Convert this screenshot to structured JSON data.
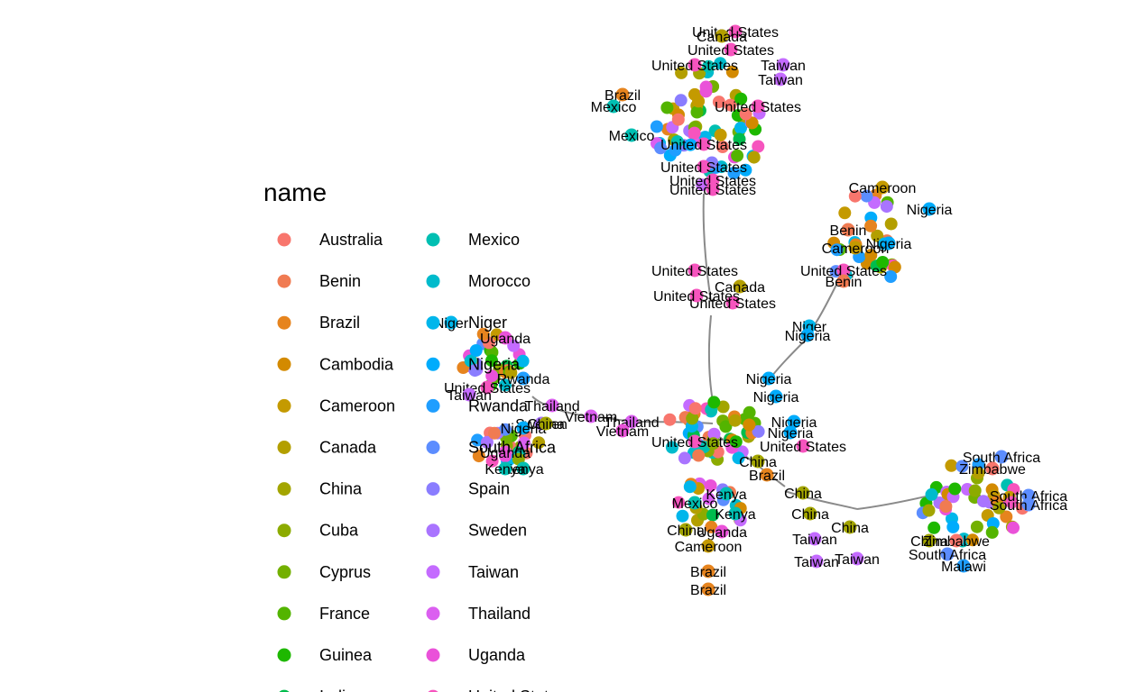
{
  "legend": {
    "title": "name",
    "items": [
      {
        "label": "Australia",
        "color": "#F8766D"
      },
      {
        "label": "Benin",
        "color": "#F07B52"
      },
      {
        "label": "Brazil",
        "color": "#E6841E"
      },
      {
        "label": "Cambodia",
        "color": "#D38A00"
      },
      {
        "label": "Cameroon",
        "color": "#C49A00"
      },
      {
        "label": "Canada",
        "color": "#B39F00"
      },
      {
        "label": "China",
        "color": "#A3A500"
      },
      {
        "label": "Cuba",
        "color": "#8CAB00"
      },
      {
        "label": "Cyprus",
        "color": "#73B000"
      },
      {
        "label": "France",
        "color": "#53B400"
      },
      {
        "label": "Guinea",
        "color": "#1EB800"
      },
      {
        "label": "India",
        "color": "#00BC4C"
      },
      {
        "label": "Mexico",
        "color": "#00BFB2"
      },
      {
        "label": "Morocco",
        "color": "#00BBCC"
      },
      {
        "label": "Niger",
        "color": "#00B6EB"
      },
      {
        "label": "Nigeria",
        "color": "#00ACFC"
      },
      {
        "label": "Rwanda",
        "color": "#1F9EFF"
      },
      {
        "label": "South Africa",
        "color": "#5C8DFF"
      },
      {
        "label": "Spain",
        "color": "#8A7DFF"
      },
      {
        "label": "Sweden",
        "color": "#A974FF"
      },
      {
        "label": "Taiwan",
        "color": "#C46BFF"
      },
      {
        "label": "Thailand",
        "color": "#DB5FF0"
      },
      {
        "label": "Uganda",
        "color": "#EA52D9"
      },
      {
        "label": "United States",
        "color": "#F654BE"
      }
    ]
  },
  "graph": {
    "nodes": [
      {
        "label": "United States",
        "color": "#F654BE"
      },
      {
        "label": "United States",
        "color": "#F654BE"
      },
      {
        "label": "Canada",
        "color": "#B39F00"
      },
      {
        "label": "United States",
        "color": "#F654BE"
      },
      {
        "label": "Taiwan",
        "color": "#C46BFF"
      },
      {
        "label": "Taiwan",
        "color": "#C46BFF"
      },
      {
        "label": "Brazil",
        "color": "#E6841E"
      },
      {
        "label": "Mexico",
        "color": "#00BFB2"
      },
      {
        "label": "United States",
        "color": "#F654BE"
      },
      {
        "label": "Mexico",
        "color": "#00BFB2"
      },
      {
        "label": "United States",
        "color": "#F654BE"
      },
      {
        "label": "United States",
        "color": "#F654BE"
      },
      {
        "label": "United States",
        "color": "#F654BE"
      },
      {
        "label": "United States",
        "color": "#F654BE"
      },
      {
        "label": "Canada",
        "color": "#B39F00"
      },
      {
        "label": "United States",
        "color": "#F654BE"
      },
      {
        "label": "Cameroon",
        "color": "#C49A00"
      },
      {
        "label": "Nigeria",
        "color": "#00ACFC"
      },
      {
        "label": "Benin",
        "color": "#F07B52"
      },
      {
        "label": "Cameroon",
        "color": "#C49A00"
      },
      {
        "label": "United States",
        "color": "#F654BE"
      },
      {
        "label": "Nigeria",
        "color": "#00ACFC"
      },
      {
        "label": "Benin",
        "color": "#F07B52"
      },
      {
        "label": "Niger",
        "color": "#00B6EB"
      },
      {
        "label": "Nigeria",
        "color": "#00ACFC"
      },
      {
        "label": "Niger",
        "color": "#00B6EB"
      },
      {
        "label": "Uganda",
        "color": "#EA52D9"
      },
      {
        "label": "Thailand",
        "color": "#DB5FF0"
      },
      {
        "label": "Vietnam",
        "color": "#DB5FF0"
      },
      {
        "label": "United States",
        "color": "#F654BE"
      },
      {
        "label": "Taiwan",
        "color": "#C46BFF"
      },
      {
        "label": "Rwanda",
        "color": "#1F9EFF"
      },
      {
        "label": "Thailand",
        "color": "#DB5FF0"
      },
      {
        "label": "Sweden",
        "color": "#A974FF"
      },
      {
        "label": "Vietnam",
        "color": "#EA52D9"
      },
      {
        "label": "Nigeria",
        "color": "#00ACFC"
      },
      {
        "label": "China",
        "color": "#A3A500"
      },
      {
        "label": "Uganda",
        "color": "#EA52D9"
      },
      {
        "label": "Kenya",
        "color": "#00BFB2"
      },
      {
        "label": "Kenya",
        "color": "#00BFB2"
      },
      {
        "label": "Nigeria",
        "color": "#00ACFC"
      },
      {
        "label": "Nigeria",
        "color": "#00ACFC"
      },
      {
        "label": "Nigeria",
        "color": "#00ACFC"
      },
      {
        "label": "Nigeria",
        "color": "#00ACFC"
      },
      {
        "label": "United States",
        "color": "#F654BE"
      },
      {
        "label": "United States",
        "color": "#F654BE"
      },
      {
        "label": "China",
        "color": "#A3A500"
      },
      {
        "label": "Brazil",
        "color": "#E6841E"
      },
      {
        "label": "Kenya",
        "color": "#00BFB2"
      },
      {
        "label": "Mexico",
        "color": "#00BFB2"
      },
      {
        "label": "Kenya",
        "color": "#00BFB2"
      },
      {
        "label": "China",
        "color": "#A3A500"
      },
      {
        "label": "Uganda",
        "color": "#EA52D9"
      },
      {
        "label": "Cameroon",
        "color": "#C49A00"
      },
      {
        "label": "Brazil",
        "color": "#E6841E"
      },
      {
        "label": "Brazil",
        "color": "#E6841E"
      },
      {
        "label": "China",
        "color": "#A3A500"
      },
      {
        "label": "China",
        "color": "#A3A500"
      },
      {
        "label": "Taiwan",
        "color": "#C46BFF"
      },
      {
        "label": "Taiwan",
        "color": "#C46BFF"
      },
      {
        "label": "China",
        "color": "#A3A500"
      },
      {
        "label": "Taiwan",
        "color": "#C46BFF"
      },
      {
        "label": "China",
        "color": "#A3A500"
      },
      {
        "label": "South Africa",
        "color": "#5C8DFF"
      },
      {
        "label": "Zimbabwe",
        "color": "#F8766D"
      },
      {
        "label": "South Africa",
        "color": "#5C8DFF"
      },
      {
        "label": "South Africa",
        "color": "#5C8DFF"
      },
      {
        "label": "Zimbabwe",
        "color": "#F8766D"
      },
      {
        "label": "South Africa",
        "color": "#5C8DFF"
      },
      {
        "label": "Malawi",
        "color": "#1F9EFF"
      },
      {
        "label": "United States",
        "color": "#F654BE"
      },
      {
        "label": "United States",
        "color": "#F654BE"
      }
    ]
  }
}
